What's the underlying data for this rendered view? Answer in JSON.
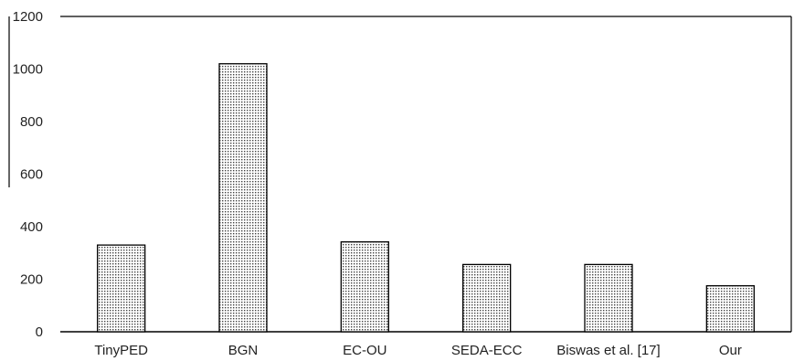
{
  "chart_data": {
    "type": "bar",
    "title": "",
    "xlabel": "",
    "ylabel": "",
    "categories": [
      "TinyPED",
      "BGN",
      "EC-OU",
      "SEDA-ECC",
      "Biswas et al. [17]",
      "Our"
    ],
    "values": [
      330,
      1020,
      342,
      256,
      256,
      175
    ],
    "ylim": [
      0,
      1200
    ],
    "yticks": [
      0,
      200,
      400,
      600,
      800,
      1000,
      1200
    ],
    "ytick_labels": [
      "0",
      "200",
      "400",
      "600",
      "800",
      "1000",
      "1200"
    ],
    "grid": false,
    "legend": "none",
    "bar_fill": "dotted",
    "colors": {
      "bar_stroke": "#000000",
      "bar_dot": "#444444",
      "bar_bg": "#ffffff",
      "axis": "#000000",
      "text": "#222222"
    }
  }
}
